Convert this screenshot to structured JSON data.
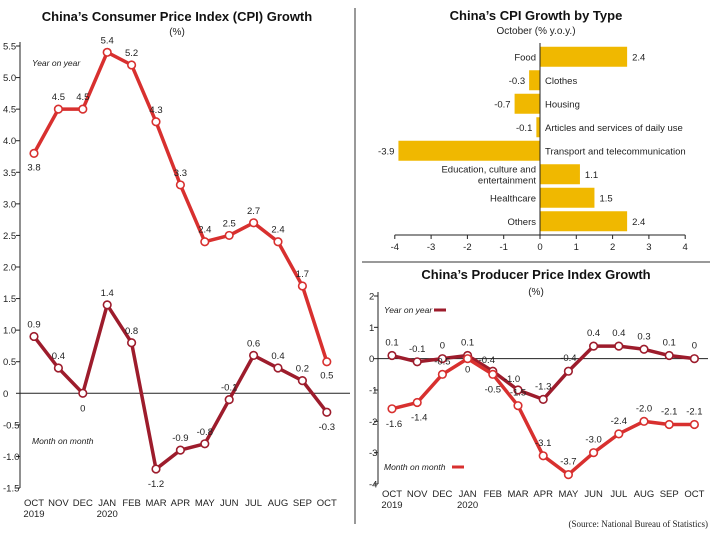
{
  "colors": {
    "cpi_yoy": "#d8302f",
    "cpi_mom": "#9d1c2c",
    "bar": "#f0b800",
    "axis": "#222222"
  },
  "source": "(Source: National Bureau of Statistics)",
  "chart_data": [
    {
      "type": "line",
      "title": "China’s Consumer Price Index (CPI) Growth",
      "subtitle": "(%)",
      "categories": [
        "OCT",
        "NOV",
        "DEC",
        "JAN",
        "FEB",
        "MAR",
        "APR",
        "MAY",
        "JUN",
        "JUL",
        "AUG",
        "SEP",
        "OCT"
      ],
      "year_labels": [
        "2019",
        "",
        "",
        "2020",
        "",
        "",
        "",
        "",
        "",
        "",
        "",
        "",
        ""
      ],
      "yticks": [
        "5.5",
        "5.0",
        "4.5",
        "4.0",
        "3.5",
        "3.0",
        "2.5",
        "2.0",
        "1.5",
        "1.0",
        "0.5",
        "0",
        "-0.5",
        "-1.0",
        "-1.5"
      ],
      "ylim": [
        -1.5,
        5.5
      ],
      "series": [
        {
          "name": "Year on year",
          "values": [
            3.8,
            4.5,
            4.5,
            5.4,
            5.2,
            4.3,
            3.3,
            2.4,
            2.5,
            2.7,
            2.4,
            1.7,
            0.5
          ],
          "labels": [
            "3.8",
            "4.5",
            "4.5",
            "5.4",
            "5.2",
            "4.3",
            "3.3",
            "2.4",
            "2.5",
            "2.7",
            "2.4",
            "1.7",
            "0.5"
          ]
        },
        {
          "name": "Month on month",
          "values": [
            0.9,
            0.4,
            0,
            1.4,
            0.8,
            -1.2,
            -0.9,
            -0.8,
            -0.1,
            0.6,
            0.4,
            0.2,
            -0.3
          ],
          "labels": [
            "0.9",
            "0.4",
            "0",
            "1.4",
            "0.8",
            "-1.2",
            "-0.9",
            "-0.8",
            "-0.1",
            "0.6",
            "0.4",
            "0.2",
            "-0.3"
          ]
        }
      ]
    },
    {
      "type": "bar",
      "title": "China’s CPI Growth by Type",
      "subtitle": "October (% y.o.y.)",
      "categories": [
        "Food",
        "Clothes",
        "Housing",
        "Articles and services of daily use",
        "Transport and telecommunication",
        "Education, culture and entertainment",
        "Healthcare",
        "Others"
      ],
      "values": [
        2.4,
        -0.3,
        -0.7,
        -0.1,
        -3.9,
        1.1,
        1.5,
        2.4
      ],
      "value_labels": [
        "2.4",
        "-0.3",
        "-0.7",
        "-0.1",
        "-3.9",
        "1.1",
        "1.5",
        "2.4"
      ],
      "xticks": [
        "-4",
        "-3",
        "-2",
        "-1",
        "0",
        "1",
        "2",
        "3",
        "4"
      ],
      "xlim": [
        -4,
        4
      ]
    },
    {
      "type": "line",
      "title": "China’s Producer Price Index Growth",
      "subtitle": "(%)",
      "categories": [
        "OCT",
        "NOV",
        "DEC",
        "JAN",
        "FEB",
        "MAR",
        "APR",
        "MAY",
        "JUN",
        "JUL",
        "AUG",
        "SEP",
        "OCT"
      ],
      "year_labels": [
        "2019",
        "",
        "",
        "2020",
        "",
        "",
        "",
        "",
        "",
        "",
        "",
        "",
        ""
      ],
      "yticks": [
        "2",
        "1",
        "0",
        "-1",
        "-2",
        "-3",
        "-4"
      ],
      "ylim": [
        -4,
        2
      ],
      "series": [
        {
          "name": "Year on year",
          "values": [
            0.1,
            -0.1,
            0,
            0.1,
            -0.4,
            -1.0,
            -1.3,
            -0.4,
            0.4,
            0.4,
            0.3,
            0.1,
            0
          ],
          "labels": [
            "0.1",
            "-0.1",
            "0",
            "0.1",
            "-0.4",
            "-1.0",
            "-1.3",
            "-0.4",
            "0.4",
            "0.4",
            "0.3",
            "0.1",
            "0"
          ]
        },
        {
          "name": "Month on month",
          "values": [
            -1.6,
            -1.4,
            -0.5,
            0,
            -0.5,
            -1.5,
            -3.1,
            -3.7,
            -3.0,
            -2.4,
            -2.0,
            -2.1,
            -2.1
          ],
          "labels": [
            "-1.6",
            "-1.4",
            "-0.5",
            "0",
            "-0.5",
            "-1.5",
            "-3.1",
            "-3.7",
            "-3.0",
            "-2.4",
            "-2.0",
            "-2.1",
            "-2.1"
          ]
        }
      ]
    }
  ]
}
